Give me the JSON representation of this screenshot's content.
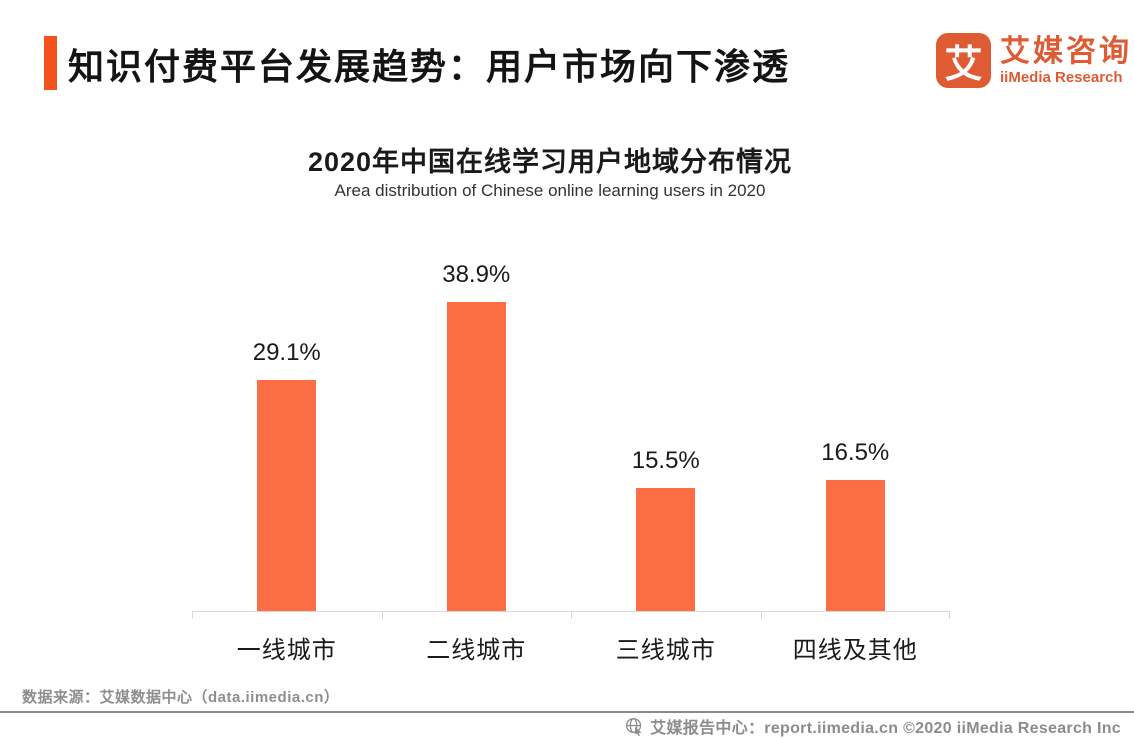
{
  "header": {
    "title": "知识付费平台发展趋势：用户市场向下渗透",
    "logo": {
      "glyph": "艾",
      "name_cn": "艾媒咨询",
      "name_en": "iiMedia Research"
    }
  },
  "chart": {
    "title": "2020年中国在线学习用户地域分布情况",
    "subtitle": "Area distribution of Chinese online learning users in 2020"
  },
  "chart_data": {
    "type": "bar",
    "title": "2020年中国在线学习用户地域分布情况",
    "subtitle": "Area distribution of Chinese online learning users in 2020",
    "categories": [
      "一线城市",
      "二线城市",
      "三线城市",
      "四线及其他"
    ],
    "values": [
      29.1,
      38.9,
      15.5,
      16.5
    ],
    "value_labels": [
      "29.1%",
      "38.9%",
      "15.5%",
      "16.5%"
    ],
    "unit": "percent",
    "xlabel": "",
    "ylabel": "",
    "ylim": [
      0,
      46.8
    ],
    "grid": false,
    "legend": false,
    "bar_color": "#FB6E44",
    "axis_color": "#D9D9D9"
  },
  "source_note": "数据来源：艾媒数据中心（data.iimedia.cn）",
  "footer": {
    "text": "艾媒报告中心：report.iimedia.cn ©2020  iiMedia Research  Inc"
  },
  "colors": {
    "accent": "#F3511D",
    "bar": "#FB6E44",
    "logo": "#DF5B33",
    "muted_text": "#8C8C8C"
  }
}
